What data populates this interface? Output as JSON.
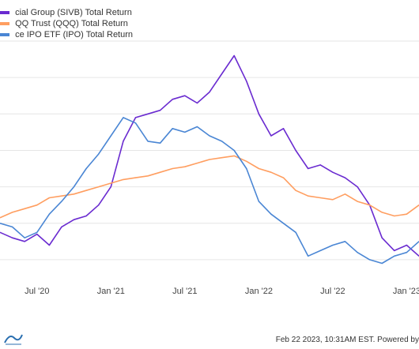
{
  "chart_data": {
    "type": "line",
    "title": "",
    "xlabel": "",
    "ylabel": "",
    "grid": true,
    "legend_position": "top-left",
    "x_tick_labels": [
      "Jul '20",
      "Jan '21",
      "Jul '21",
      "Jan '22",
      "Jul '22",
      "Jan '23"
    ],
    "x": [
      "2020-04",
      "2020-05",
      "2020-06",
      "2020-07",
      "2020-08",
      "2020-09",
      "2020-10",
      "2020-11",
      "2020-12",
      "2021-01",
      "2021-02",
      "2021-03",
      "2021-04",
      "2021-05",
      "2021-06",
      "2021-07",
      "2021-08",
      "2021-09",
      "2021-10",
      "2021-11",
      "2021-12",
      "2022-01",
      "2022-02",
      "2022-03",
      "2022-04",
      "2022-05",
      "2022-06",
      "2022-07",
      "2022-08",
      "2022-09",
      "2022-10",
      "2022-11",
      "2022-12",
      "2023-01",
      "2023-02"
    ],
    "series": [
      {
        "name": "cial Group (SIVB) Total Return",
        "color": "#6a2bd0",
        "values": [
          -5,
          -8,
          -10,
          -6,
          -12,
          -2,
          2,
          4,
          10,
          20,
          45,
          58,
          60,
          62,
          68,
          70,
          66,
          72,
          82,
          92,
          78,
          60,
          48,
          52,
          40,
          30,
          32,
          28,
          25,
          20,
          10,
          -8,
          -15,
          -12,
          -18
        ]
      },
      {
        "name": "QQ Trust (QQQ) Total Return",
        "color": "#ff9e60",
        "values": [
          3,
          6,
          8,
          10,
          14,
          15,
          16,
          18,
          20,
          22,
          24,
          25,
          26,
          28,
          30,
          31,
          33,
          35,
          36,
          37,
          34,
          30,
          28,
          25,
          18,
          15,
          14,
          13,
          16,
          12,
          10,
          6,
          4,
          5,
          10
        ]
      },
      {
        "name": "ce IPO ETF (IPO) Total Return",
        "color": "#4a86d4",
        "values": [
          0,
          -2,
          -8,
          -5,
          5,
          12,
          20,
          30,
          38,
          48,
          58,
          55,
          45,
          44,
          52,
          50,
          53,
          48,
          45,
          40,
          30,
          12,
          5,
          0,
          -5,
          -18,
          -15,
          -12,
          -10,
          -16,
          -20,
          -22,
          -18,
          -16,
          -10
        ]
      }
    ]
  },
  "legend": [
    {
      "label": "cial Group (SIVB) Total Return",
      "color": "#6a2bd0"
    },
    {
      "label": "QQ Trust (QQQ) Total Return",
      "color": "#ff9e60"
    },
    {
      "label": "ce IPO ETF (IPO) Total Return",
      "color": "#4a86d4"
    }
  ],
  "footer": {
    "text": "Feb 22 2023, 10:31AM EST. Powered by"
  }
}
